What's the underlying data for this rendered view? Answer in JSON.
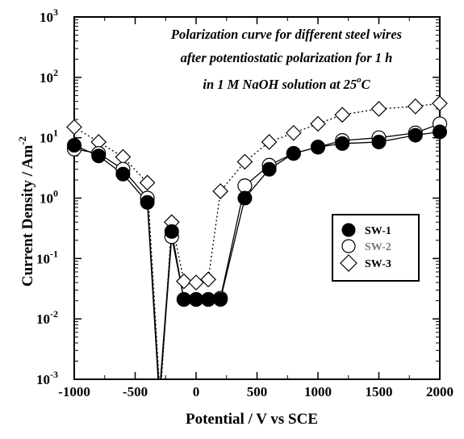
{
  "chart_data": {
    "type": "scatter",
    "title": "",
    "annotation_lines": [
      "Polarization curve for different steel wires",
      "after potentiostatic polarization for 1 h",
      "in 1 M NaOH solution at 25",
      "o",
      "C"
    ],
    "xlabel": "Potential / V vs SCE",
    "ylabel_main": "Current Density / Am",
    "ylabel_sup": "-2",
    "xlim": [
      -1000,
      2000
    ],
    "ylim": [
      0.001,
      1000
    ],
    "y_scale": "log",
    "x_ticks": [
      -1000,
      -500,
      0,
      500,
      1000,
      1500,
      2000
    ],
    "x_tick_labels": [
      "-1000",
      "-500",
      "0",
      "500",
      "1000",
      "1500",
      "2000"
    ],
    "y_ticks": [
      0.001,
      0.01,
      0.1,
      1,
      10,
      100,
      1000
    ],
    "y_tick_exponents": [
      "-3",
      "-2",
      "-1",
      "0",
      "1",
      "2",
      "3"
    ],
    "y_tick_base": "10",
    "legend_position": "right-middle",
    "grid": false,
    "series": [
      {
        "name": "SW-1",
        "marker": "filled-circle",
        "line": "solid",
        "x": [
          -1000,
          -800,
          -600,
          -400,
          -200,
          -100,
          0,
          100,
          200,
          400,
          600,
          800,
          1000,
          1200,
          1500,
          1800,
          2000
        ],
        "y": [
          7.5,
          5,
          2.5,
          0.85,
          0.28,
          0.021,
          0.021,
          0.021,
          0.021,
          1.0,
          3.0,
          5.5,
          7.0,
          8.0,
          8.5,
          11,
          12.5
        ]
      },
      {
        "name": "SW-2",
        "marker": "open-circle",
        "line": "solid",
        "x": [
          -1000,
          -800,
          -600,
          -400,
          -200,
          -100,
          0,
          100,
          200,
          400,
          600,
          800,
          1000,
          1200,
          1500,
          1800,
          2000
        ],
        "y": [
          6.5,
          5.5,
          3.0,
          1.0,
          0.23,
          0.021,
          0.021,
          0.021,
          0.022,
          1.6,
          3.5,
          5.5,
          7.0,
          9.0,
          10,
          12,
          17
        ]
      },
      {
        "name": "SW-3",
        "marker": "open-diamond",
        "line": "dotted",
        "x": [
          -1000,
          -800,
          -600,
          -400,
          -200,
          -100,
          0,
          100,
          200,
          400,
          600,
          800,
          1000,
          1200,
          1500,
          1800,
          2000
        ],
        "y": [
          15,
          8.5,
          4.8,
          1.8,
          0.4,
          0.042,
          0.04,
          0.045,
          1.3,
          4.0,
          8.5,
          12,
          17,
          24,
          30,
          33,
          37
        ]
      }
    ]
  }
}
